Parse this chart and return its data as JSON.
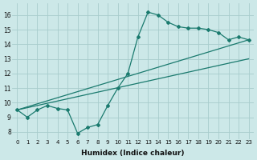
{
  "xlabel": "Humidex (Indice chaleur)",
  "ylabel": "",
  "x_ticks": [
    0,
    1,
    2,
    3,
    4,
    5,
    6,
    7,
    8,
    9,
    10,
    11,
    12,
    13,
    14,
    15,
    16,
    17,
    18,
    19,
    20,
    21,
    22,
    23
  ],
  "ylim": [
    7.5,
    16.8
  ],
  "xlim": [
    -0.5,
    23.5
  ],
  "bg_color": "#cce8e8",
  "line_color": "#1a7a6e",
  "grid_color": "#a8cccc",
  "main_line": [
    9.5,
    9.0,
    9.5,
    9.8,
    9.6,
    9.5,
    7.9,
    8.3,
    8.5,
    9.8,
    11.0,
    12.0,
    14.5,
    16.2,
    16.0,
    15.5,
    15.2,
    15.1,
    15.1,
    15.0,
    14.8,
    14.3,
    14.5,
    14.3
  ],
  "upper_line_start": 9.5,
  "upper_line_end": 14.3,
  "lower_line_start": 9.5,
  "lower_line_end": 13.0,
  "yticks": [
    8,
    9,
    10,
    11,
    12,
    13,
    14,
    15,
    16
  ]
}
